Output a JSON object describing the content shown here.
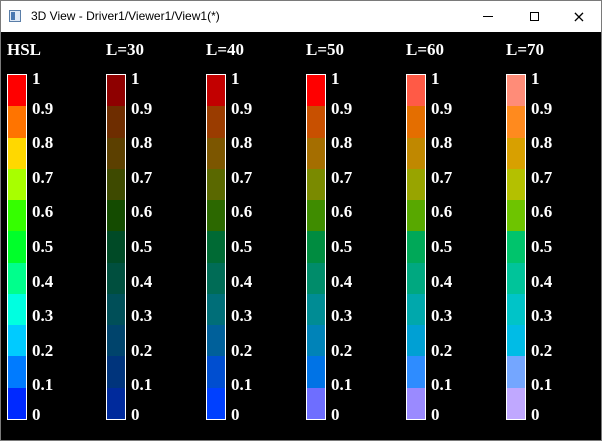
{
  "window": {
    "title": "3D View - Driver1/Viewer1/View1(*)",
    "icon": "app-window-icon",
    "min_glyph": "minimize-icon",
    "max_glyph": "maximize-icon",
    "close_glyph": "×"
  },
  "scale_labels": [
    "0",
    "0.1",
    "0.2",
    "0.3",
    "0.4",
    "0.5",
    "0.6",
    "0.7",
    "0.8",
    "0.9",
    "1"
  ],
  "colorbars": [
    {
      "title": "HSL",
      "colors_bottom_to_top": [
        "#0029ff",
        "#007bff",
        "#00cbff",
        "#00ffe0",
        "#00ff8c",
        "#00ff2a",
        "#35ff00",
        "#a8ff00",
        "#ffd800",
        "#ff7400",
        "#ff0000"
      ]
    },
    {
      "title": "L=30",
      "colors_bottom_to_top": [
        "#002a9c",
        "#00347c",
        "#00446c",
        "#004f58",
        "#004f3e",
        "#004a26",
        "#144b00",
        "#3e4a00",
        "#5c4000",
        "#6e2d00",
        "#8e0000"
      ]
    },
    {
      "title": "L=40",
      "colors_bottom_to_top": [
        "#0040ff",
        "#004ed0",
        "#00609a",
        "#006e78",
        "#006c56",
        "#006a34",
        "#2c6800",
        "#5a6800",
        "#7c5600",
        "#9a3c00",
        "#c20000"
      ]
    },
    {
      "title": "L=50",
      "colors_bottom_to_top": [
        "#6e6eff",
        "#0073e6",
        "#0083b8",
        "#008c94",
        "#008c6a",
        "#008c40",
        "#3f8c00",
        "#7a8a00",
        "#a56e00",
        "#c85000",
        "#ff0000"
      ]
    },
    {
      "title": "L=60",
      "colors_bottom_to_top": [
        "#9a8aff",
        "#2e8cff",
        "#00a0d4",
        "#00a8ac",
        "#00a880",
        "#00a858",
        "#58a800",
        "#98a400",
        "#c08800",
        "#e46e00",
        "#ff5a46"
      ]
    },
    {
      "title": "L=70",
      "colors_bottom_to_top": [
        "#c0a8ff",
        "#74a6ff",
        "#00bce6",
        "#00c4c8",
        "#00c49a",
        "#00c46c",
        "#6ec400",
        "#b4c000",
        "#d8a000",
        "#ff8a1e",
        "#ff8c78"
      ]
    }
  ]
}
